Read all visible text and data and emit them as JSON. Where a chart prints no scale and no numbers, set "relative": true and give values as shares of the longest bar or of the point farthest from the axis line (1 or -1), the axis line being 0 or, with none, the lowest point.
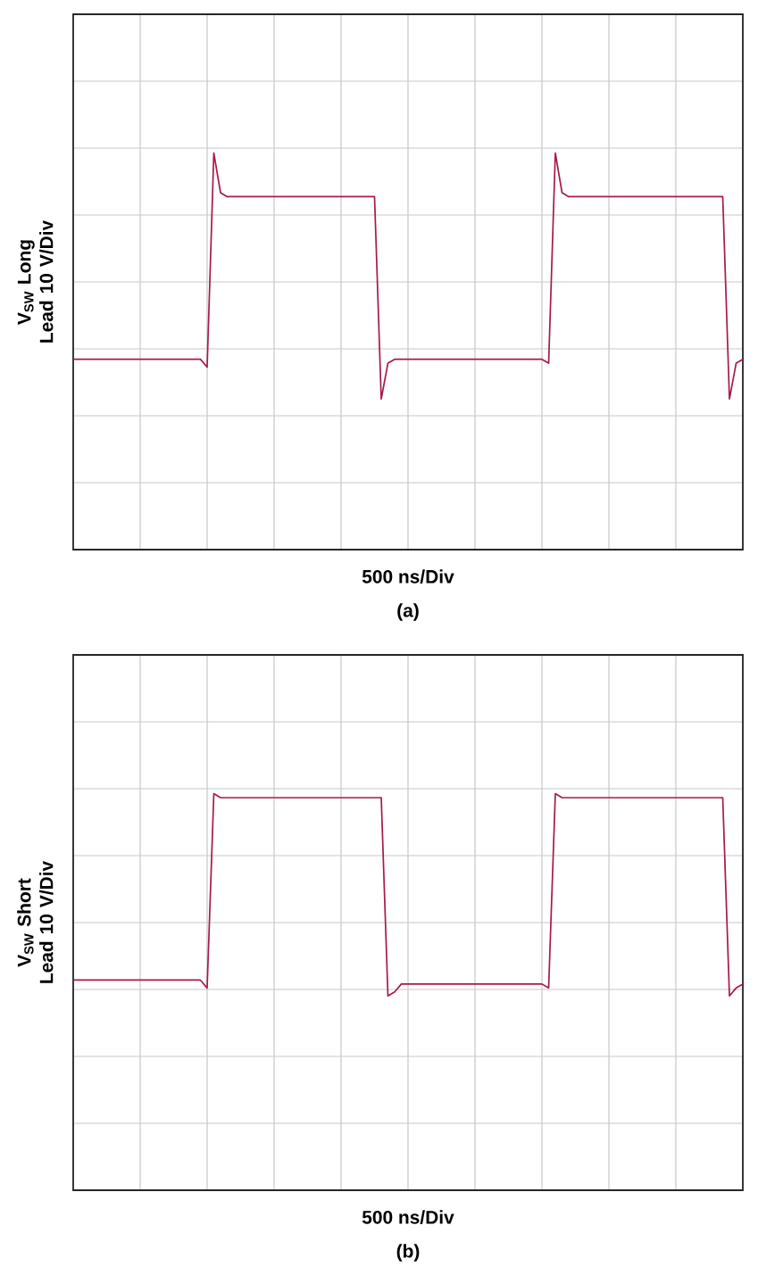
{
  "chart_data": [
    {
      "type": "line",
      "relative": true,
      "grid": true,
      "xlabel": "500 ns/Div",
      "ylabel": "V$_{SW}$ Long Lead 10 V/Div",
      "annotations": [
        "(a)"
      ],
      "categories": [
        null,
        null,
        null,
        null,
        null,
        null,
        null,
        null,
        null,
        null,
        null,
        null,
        null,
        null,
        null,
        null,
        null,
        null,
        null,
        null,
        null,
        null,
        null,
        null,
        null,
        null,
        null,
        null,
        null,
        null,
        null,
        null,
        null,
        null,
        null,
        null,
        null,
        null,
        null,
        null,
        null,
        null,
        null,
        null,
        null,
        null,
        null,
        null,
        null,
        null,
        null,
        null,
        null,
        null,
        null,
        null,
        null,
        null,
        null,
        null,
        null,
        null,
        null,
        null,
        null,
        null,
        null,
        null,
        null,
        null,
        null,
        null,
        null,
        null,
        null,
        null,
        null,
        null,
        null,
        null,
        null,
        null,
        null,
        null,
        null,
        null,
        null,
        null,
        null,
        null,
        null,
        null,
        null,
        null,
        null,
        null,
        null,
        null,
        null,
        null,
        null
      ],
      "series": [
        {
          "color": "#a8194a",
          "values": [
            0.48,
            0.48,
            0.48,
            0.48,
            0.48,
            0.48,
            0.48,
            0.48,
            0.48,
            0.48,
            0.48,
            0.48,
            0.48,
            0.48,
            0.48,
            0.48,
            0.48,
            0.48,
            0.48,
            0.48,
            0.46,
            1.0,
            0.9,
            0.89,
            0.89,
            0.89,
            0.89,
            0.89,
            0.89,
            0.89,
            0.89,
            0.89,
            0.89,
            0.89,
            0.89,
            0.89,
            0.89,
            0.89,
            0.89,
            0.89,
            0.89,
            0.89,
            0.89,
            0.89,
            0.89,
            0.89,
            0.38,
            0.47,
            0.48,
            0.48,
            0.48,
            0.48,
            0.48,
            0.48,
            0.48,
            0.48,
            0.48,
            0.48,
            0.48,
            0.48,
            0.48,
            0.48,
            0.48,
            0.48,
            0.48,
            0.48,
            0.48,
            0.48,
            0.48,
            0.48,
            0.48,
            0.47,
            1.0,
            0.9,
            0.89,
            0.89,
            0.89,
            0.89,
            0.89,
            0.89,
            0.89,
            0.89,
            0.89,
            0.89,
            0.89,
            0.89,
            0.89,
            0.89,
            0.89,
            0.89,
            0.89,
            0.89,
            0.89,
            0.89,
            0.89,
            0.89,
            0.89,
            0.89,
            0.38,
            0.47,
            0.48
          ]
        }
      ]
    },
    {
      "type": "line",
      "relative": true,
      "grid": true,
      "xlabel": "500 ns/Div",
      "ylabel": "V$_{SW}$ Short Lead 10 V/Div",
      "annotations": [
        "(b)"
      ],
      "categories": [
        null,
        null,
        null,
        null,
        null,
        null,
        null,
        null,
        null,
        null,
        null,
        null,
        null,
        null,
        null,
        null,
        null,
        null,
        null,
        null,
        null,
        null,
        null,
        null,
        null,
        null,
        null,
        null,
        null,
        null,
        null,
        null,
        null,
        null,
        null,
        null,
        null,
        null,
        null,
        null,
        null,
        null,
        null,
        null,
        null,
        null,
        null,
        null,
        null,
        null,
        null,
        null,
        null,
        null,
        null,
        null,
        null,
        null,
        null,
        null,
        null,
        null,
        null,
        null,
        null,
        null,
        null,
        null,
        null,
        null,
        null,
        null,
        null,
        null,
        null,
        null,
        null,
        null,
        null,
        null,
        null,
        null,
        null,
        null,
        null,
        null,
        null,
        null,
        null,
        null,
        null,
        null,
        null,
        null,
        null,
        null,
        null,
        null,
        null,
        null,
        null
      ],
      "series": [
        {
          "color": "#a8194a",
          "values": [
            0.53,
            0.53,
            0.53,
            0.53,
            0.53,
            0.53,
            0.53,
            0.53,
            0.53,
            0.53,
            0.53,
            0.53,
            0.53,
            0.53,
            0.53,
            0.53,
            0.53,
            0.53,
            0.53,
            0.53,
            0.51,
            1.0,
            0.99,
            0.99,
            0.99,
            0.99,
            0.99,
            0.99,
            0.99,
            0.99,
            0.99,
            0.99,
            0.99,
            0.99,
            0.99,
            0.99,
            0.99,
            0.99,
            0.99,
            0.99,
            0.99,
            0.99,
            0.99,
            0.99,
            0.99,
            0.99,
            0.99,
            0.49,
            0.5,
            0.52,
            0.52,
            0.52,
            0.52,
            0.52,
            0.52,
            0.52,
            0.52,
            0.52,
            0.52,
            0.52,
            0.52,
            0.52,
            0.52,
            0.52,
            0.52,
            0.52,
            0.52,
            0.52,
            0.52,
            0.52,
            0.52,
            0.51,
            1.0,
            0.99,
            0.99,
            0.99,
            0.99,
            0.99,
            0.99,
            0.99,
            0.99,
            0.99,
            0.99,
            0.99,
            0.99,
            0.99,
            0.99,
            0.99,
            0.99,
            0.99,
            0.99,
            0.99,
            0.99,
            0.99,
            0.99,
            0.99,
            0.99,
            0.99,
            0.49,
            0.51,
            0.52
          ]
        }
      ]
    }
  ]
}
